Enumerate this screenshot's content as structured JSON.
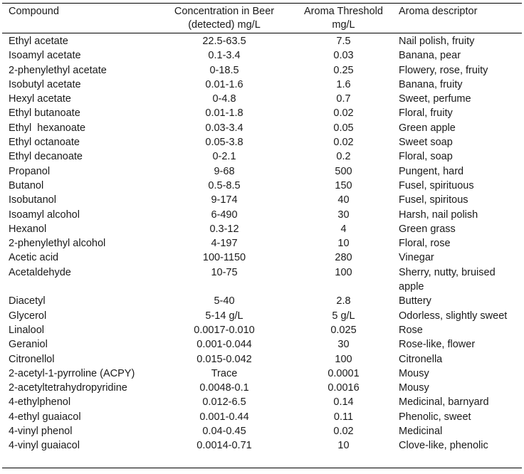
{
  "table": {
    "headers": {
      "compound": "Compound",
      "concentration_line1": "Concentration in Beer",
      "concentration_line2": "(detected) mg/L",
      "threshold_line1": "Aroma Threshold",
      "threshold_line2": "mg/L",
      "descriptor": "Aroma descriptor"
    },
    "rows": [
      {
        "compound": "Ethyl acetate",
        "concentration": "22.5-63.5",
        "threshold": "7.5",
        "descriptor": "Nail polish, fruity"
      },
      {
        "compound": "Isoamyl acetate",
        "concentration": "0.1-3.4",
        "threshold": "0.03",
        "descriptor": "Banana, pear"
      },
      {
        "compound": "2-phenylethyl acetate",
        "concentration": "0-18.5",
        "threshold": "0.25",
        "descriptor": "Flowery, rose, fruity"
      },
      {
        "compound": "Isobutyl acetate",
        "concentration": "0.01-1.6",
        "threshold": "1.6",
        "descriptor": "Banana, fruity"
      },
      {
        "compound": "Hexyl acetate",
        "concentration": "0-4.8",
        "threshold": "0.7",
        "descriptor": "Sweet, perfume"
      },
      {
        "compound": "Ethyl butanoate",
        "concentration": "0.01-1.8",
        "threshold": "0.02",
        "descriptor": "Floral, fruity"
      },
      {
        "compound": "Ethyl  hexanoate",
        "concentration": "0.03-3.4",
        "threshold": "0.05",
        "descriptor": "Green apple"
      },
      {
        "compound": "Ethyl octanoate",
        "concentration": "0.05-3.8",
        "threshold": "0.02",
        "descriptor": "Sweet soap"
      },
      {
        "compound": "Ethyl decanoate",
        "concentration": "0-2.1",
        "threshold": "0.2",
        "descriptor": "Floral, soap"
      },
      {
        "compound": "Propanol",
        "concentration": "9-68",
        "threshold": "500",
        "descriptor": "Pungent, hard"
      },
      {
        "compound": "Butanol",
        "concentration": "0.5-8.5",
        "threshold": "150",
        "descriptor": "Fusel, spirituous"
      },
      {
        "compound": "Isobutanol",
        "concentration": "9-174",
        "threshold": "40",
        "descriptor": "Fusel, spiritous"
      },
      {
        "compound": "Isoamyl alcohol",
        "concentration": "6-490",
        "threshold": "30",
        "descriptor": "Harsh, nail polish"
      },
      {
        "compound": "Hexanol",
        "concentration": "0.3-12",
        "threshold": "4",
        "descriptor": "Green grass"
      },
      {
        "compound": "2-phenylethyl alcohol",
        "concentration": "4-197",
        "threshold": "10",
        "descriptor": "Floral, rose"
      },
      {
        "compound": "Acetic acid",
        "concentration": "100-1150",
        "threshold": "280",
        "descriptor": "Vinegar"
      },
      {
        "compound": "Acetaldehyde",
        "concentration": "10-75",
        "threshold": "100",
        "descriptor": "Sherry, nutty, bruised apple"
      },
      {
        "compound": "Diacetyl",
        "concentration": "5-40",
        "threshold": "2.8",
        "descriptor": "Buttery"
      },
      {
        "compound": "Glycerol",
        "concentration": "5-14 g/L",
        "threshold": "5 g/L",
        "descriptor": "Odorless, slightly sweet"
      },
      {
        "compound": "Linalool",
        "concentration": "0.0017-0.010",
        "threshold": "0.025",
        "descriptor": "Rose"
      },
      {
        "compound": "Geraniol",
        "concentration": "0.001-0.044",
        "threshold": "30",
        "descriptor": "Rose-like, flower"
      },
      {
        "compound": "Citronellol",
        "concentration": "0.015-0.042",
        "threshold": "100",
        "descriptor": "Citronella"
      },
      {
        "compound": "2-acetyl-1-pyrroline (ACPY)",
        "concentration": "Trace",
        "threshold": "0.0001",
        "descriptor": "Mousy"
      },
      {
        "compound": "2-acetyltetrahydropyridine",
        "concentration": "0.0048-0.1",
        "threshold": "0.0016",
        "descriptor": "Mousy"
      },
      {
        "compound": "4-ethylphenol",
        "concentration": "0.012-6.5",
        "threshold": "0.14",
        "descriptor": "Medicinal, barnyard"
      },
      {
        "compound": "4-ethyl guaiacol",
        "concentration": "0.001-0.44",
        "threshold": "0.11",
        "descriptor": "Phenolic, sweet"
      },
      {
        "compound": "4-vinyl phenol",
        "concentration": "0.04-0.45",
        "threshold": "0.02",
        "descriptor": "Medicinal"
      },
      {
        "compound": "4-vinyl guaiacol",
        "concentration": "0.0014-0.71",
        "threshold": "10",
        "descriptor": "Clove-like, phenolic"
      }
    ]
  }
}
